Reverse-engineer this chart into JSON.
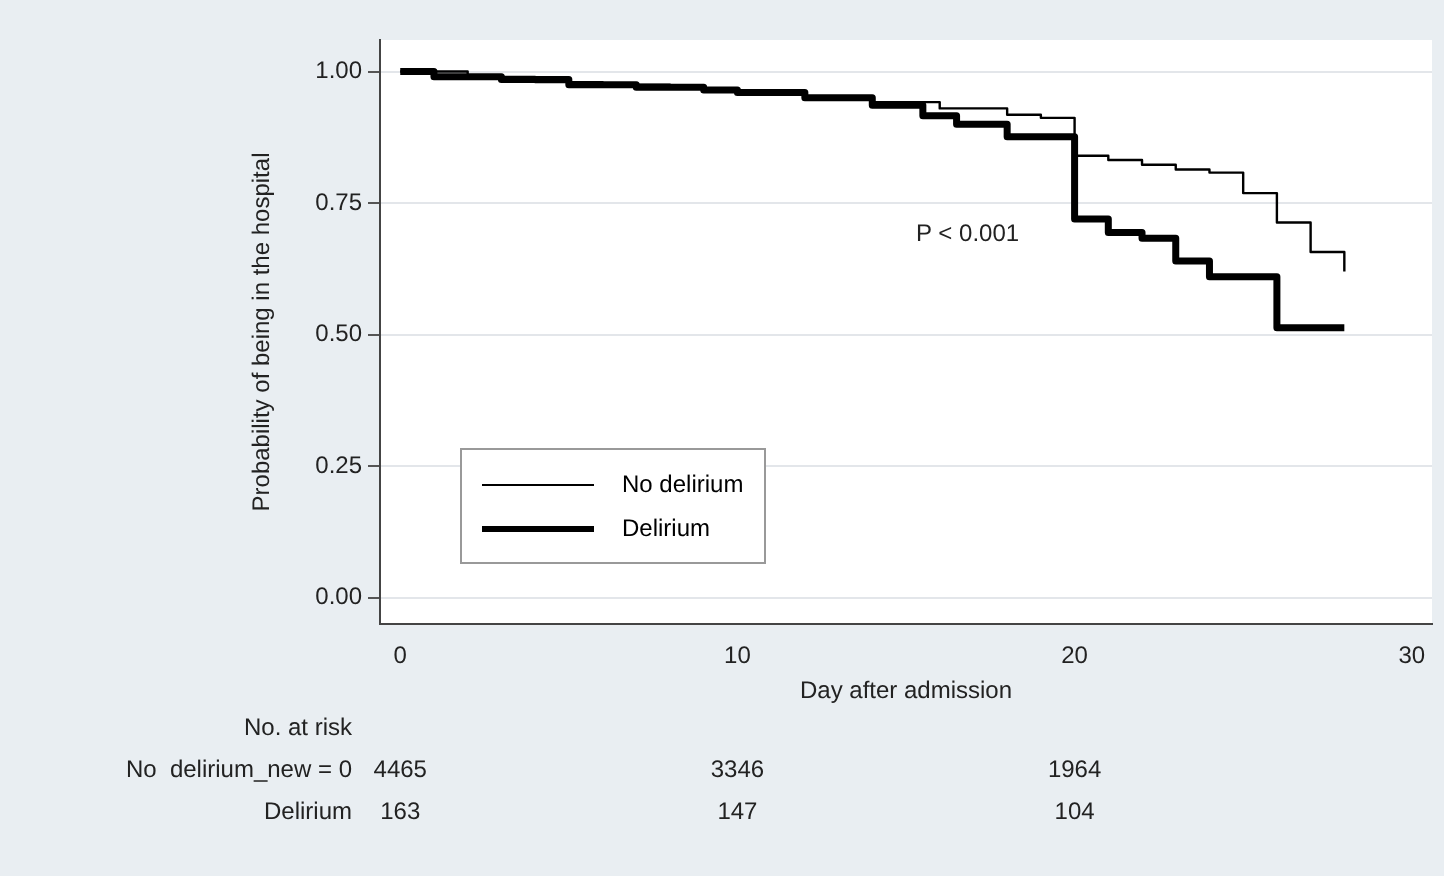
{
  "chart_data": {
    "type": "step",
    "xlabel": "Day after admission",
    "ylabel": "Probability of being in the hospital",
    "xlim": [
      -0.6,
      30.6
    ],
    "xticks": [
      0,
      10,
      20,
      30
    ],
    "ylim": [
      -0.05,
      1.06
    ],
    "yticks": [
      {
        "value": 0,
        "label": "0.00"
      },
      {
        "value": 0.25,
        "label": "0.25"
      },
      {
        "value": 0.5,
        "label": "0.50"
      },
      {
        "value": 0.75,
        "label": "0.75"
      },
      {
        "value": 1,
        "label": "1.00"
      }
    ],
    "grid": "y",
    "legend": "bottom left",
    "series": [
      {
        "name": "No delirium",
        "color": "#000000",
        "x": [
          0,
          2,
          4,
          6,
          8,
          10,
          12,
          14,
          16,
          18,
          19,
          20,
          21,
          22,
          23,
          24,
          25,
          26,
          27,
          28
        ],
        "values": [
          1,
          0.99,
          0.98,
          0.975,
          0.968,
          0.96,
          0.952,
          0.942,
          0.93,
          0.918,
          0.912,
          0.84,
          0.832,
          0.823,
          0.814,
          0.808,
          0.769,
          0.713,
          0.657,
          0.62
        ]
      },
      {
        "name": "Delirium",
        "color": "#000000",
        "x": [
          0,
          1,
          3,
          5,
          7,
          9,
          10,
          12,
          14,
          15.5,
          16.5,
          18,
          20,
          21,
          22,
          23,
          24,
          26,
          28
        ],
        "values": [
          1,
          0.99,
          0.985,
          0.975,
          0.97,
          0.965,
          0.96,
          0.95,
          0.936,
          0.916,
          0.9,
          0.876,
          0.72,
          0.694,
          0.683,
          0.64,
          0.61,
          0.513,
          0.513
        ]
      }
    ],
    "annotations": [
      "P < 0.001",
      "No. at risk",
      "No  delirium_new = 0",
      "4465",
      "3346",
      "1964",
      "Delirium",
      "163",
      "147",
      "104"
    ]
  }
}
